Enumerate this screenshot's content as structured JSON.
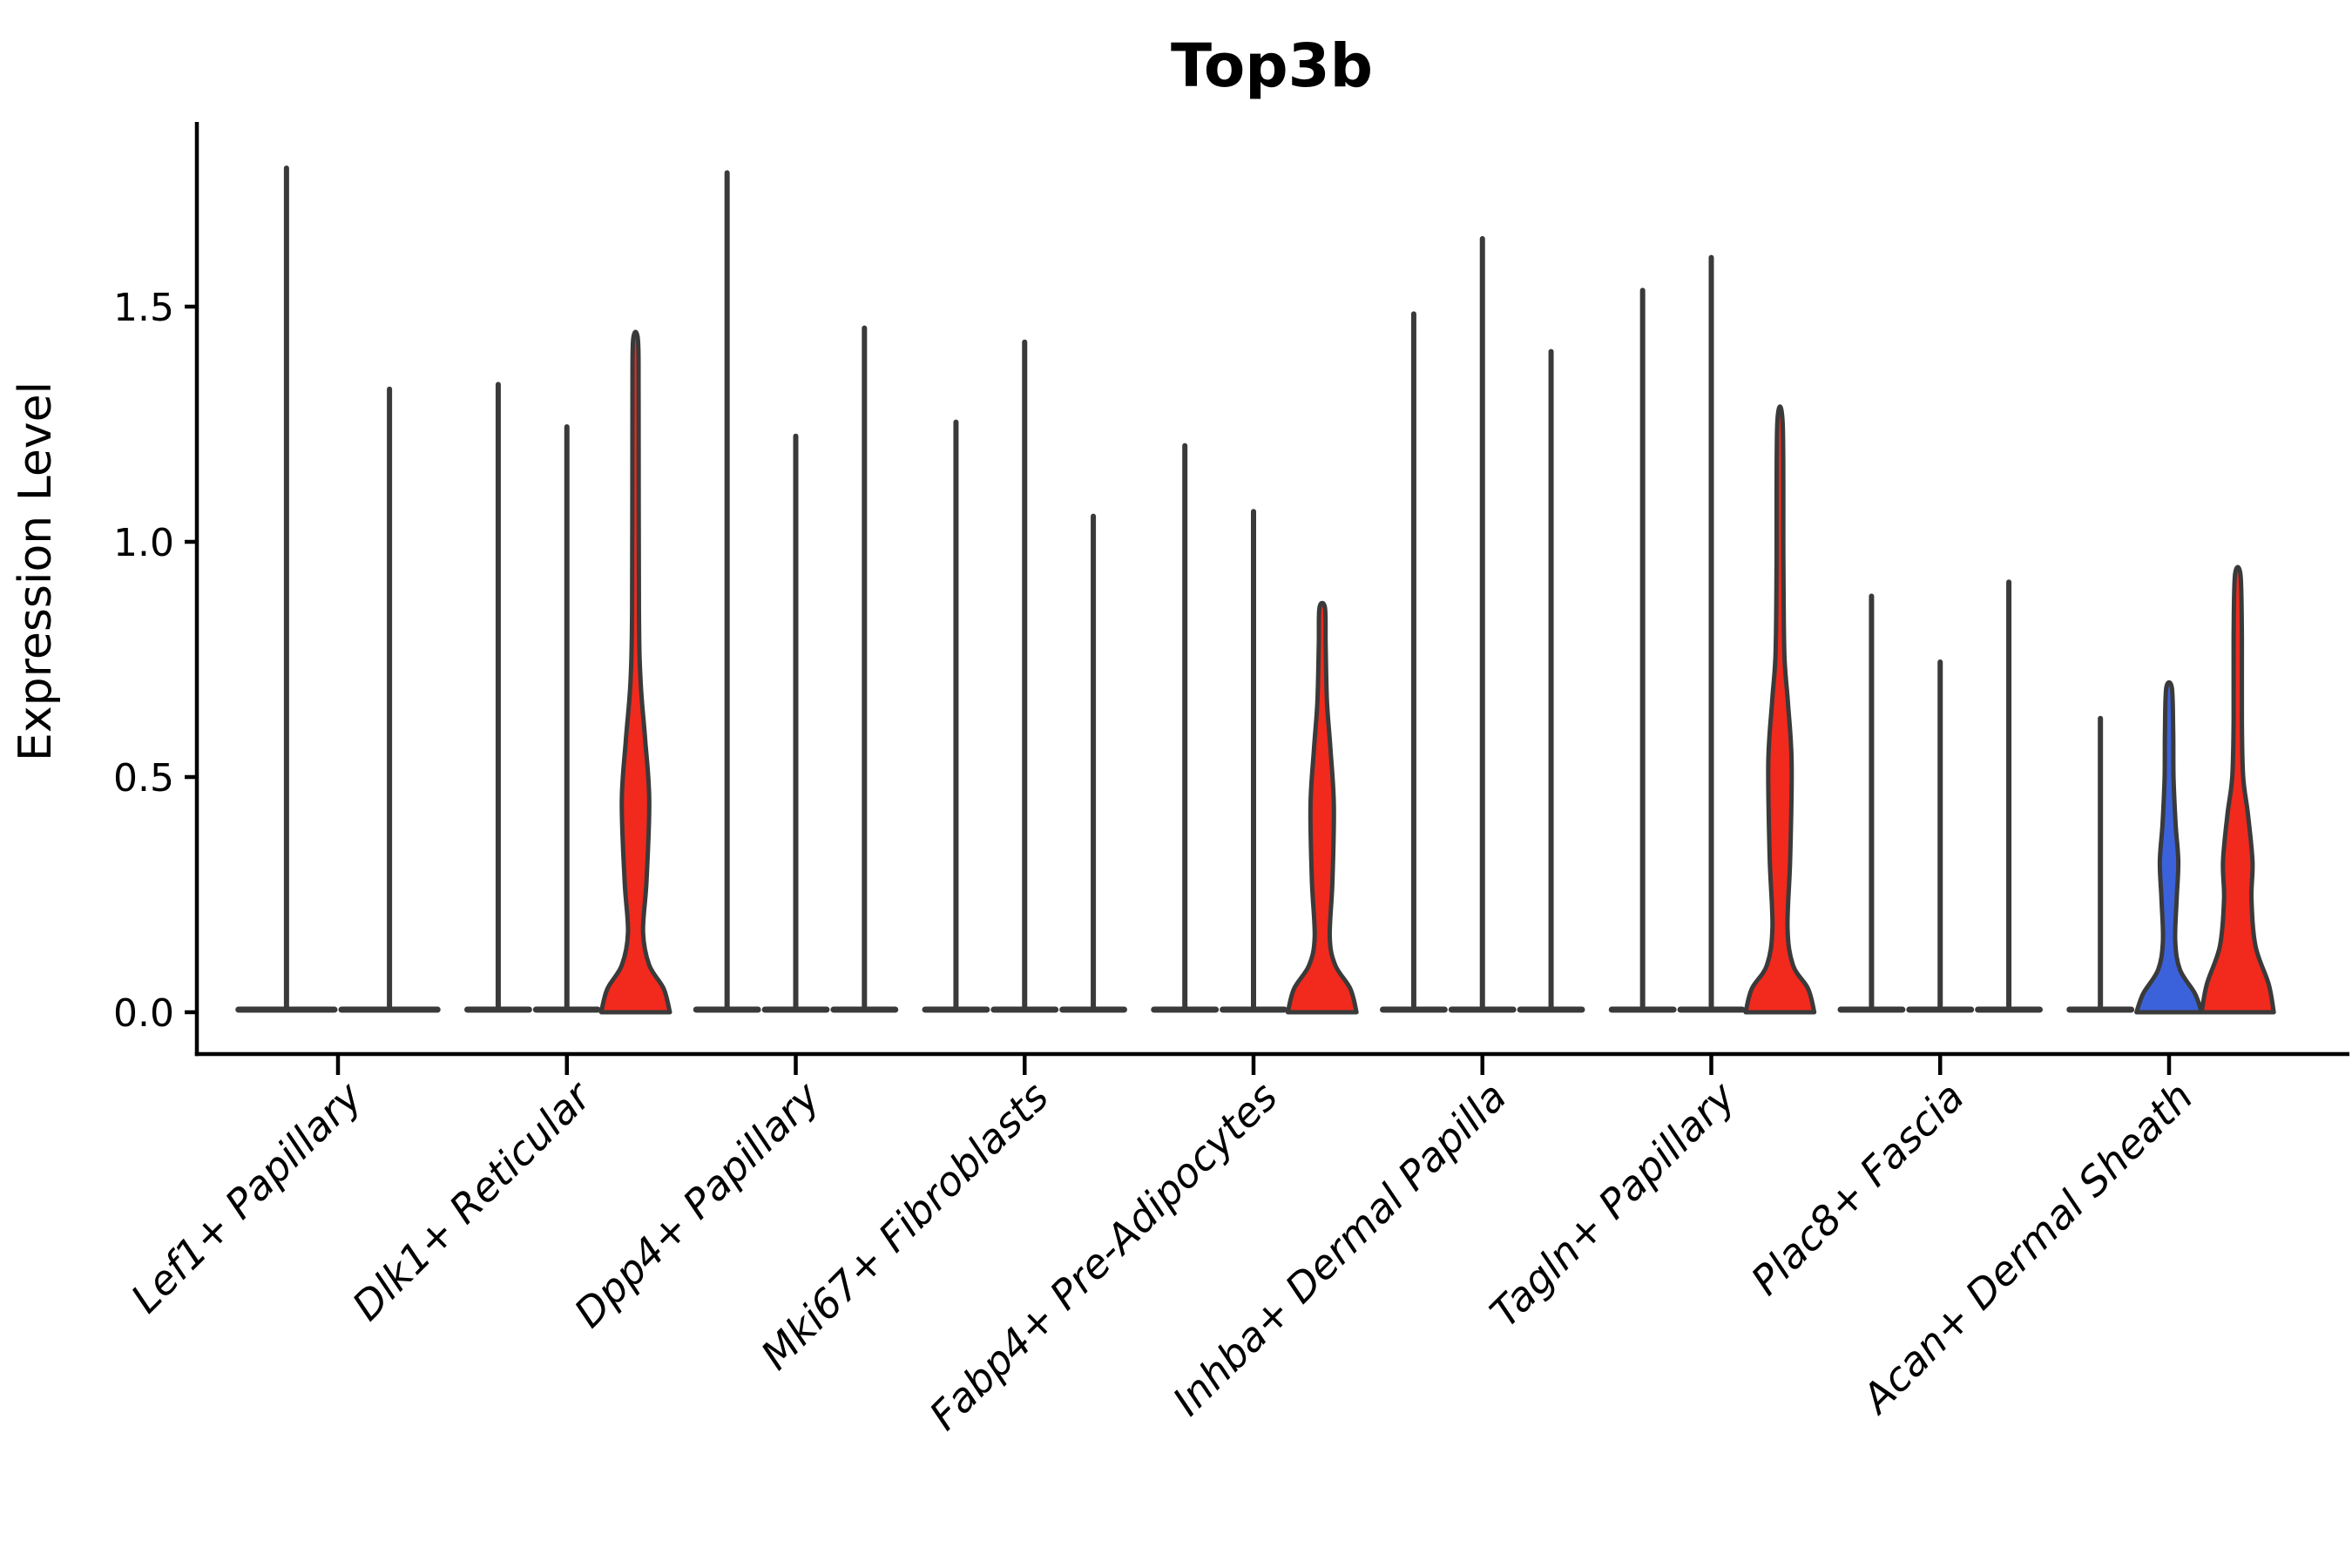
{
  "title": "Top3b",
  "chart_data": {
    "type": "violin",
    "title": "Top3b",
    "xlabel": "",
    "ylabel": "Expression Level",
    "ylim": [
      0,
      1.88
    ],
    "grid": false,
    "legend": "none",
    "x_label_rotation_deg": 45,
    "yticks": [
      0.0,
      0.5,
      1.0,
      1.5
    ],
    "ytick_labels": [
      "0.0",
      "0.5",
      "1.0",
      "1.5"
    ],
    "categories": [
      "Lef1+ Papillary",
      "Dlk1+ Reticular",
      "Dpp4+ Papillary",
      "Mki67+ Fibroblasts",
      "Fabp4+ Pre-Adipocytes",
      "Inhba+ Dermal Papilla",
      "Tagln+ Papillary",
      "Plac8+ Fascia",
      "Acan+ Dermal Sheath"
    ],
    "colors": {
      "red": "#F2291D",
      "blue": "#3B62DB",
      "outline": "#3A3A3A",
      "axis": "#000000"
    },
    "groups": [
      {
        "category": "Lef1+ Papillary",
        "violins": [
          {
            "max": 1.8,
            "fill": "none"
          },
          {
            "max": 1.33,
            "fill": "none"
          }
        ]
      },
      {
        "category": "Dlk1+ Reticular",
        "violins": [
          {
            "max": 1.34,
            "fill": "none"
          },
          {
            "max": 1.25,
            "fill": "none"
          },
          {
            "max": 1.43,
            "fill": "red",
            "profile": [
              [
                0,
                1.0
              ],
              [
                0.05,
                0.82
              ],
              [
                0.1,
                0.4
              ],
              [
                0.17,
                0.22
              ],
              [
                0.28,
                0.32
              ],
              [
                0.45,
                0.4
              ],
              [
                0.58,
                0.28
              ],
              [
                0.7,
                0.15
              ],
              [
                0.85,
                0.1
              ],
              [
                1.3,
                0.09
              ],
              [
                1.43,
                0.07
              ]
            ]
          }
        ]
      },
      {
        "category": "Dpp4+ Papillary",
        "violins": [
          {
            "max": 1.79,
            "fill": "none"
          },
          {
            "max": 1.23,
            "fill": "none"
          },
          {
            "max": 1.46,
            "fill": "none"
          }
        ]
      },
      {
        "category": "Mki67+ Fibroblasts",
        "violins": [
          {
            "max": 1.26,
            "fill": "none"
          },
          {
            "max": 1.43,
            "fill": "none"
          },
          {
            "max": 1.06,
            "fill": "none"
          }
        ]
      },
      {
        "category": "Fabp4+ Pre-Adipocytes",
        "violins": [
          {
            "max": 1.21,
            "fill": "none"
          },
          {
            "max": 1.07,
            "fill": "none"
          },
          {
            "max": 0.86,
            "fill": "red",
            "profile": [
              [
                0,
                1.0
              ],
              [
                0.05,
                0.82
              ],
              [
                0.1,
                0.38
              ],
              [
                0.16,
                0.22
              ],
              [
                0.28,
                0.3
              ],
              [
                0.44,
                0.34
              ],
              [
                0.56,
                0.24
              ],
              [
                0.66,
                0.14
              ],
              [
                0.78,
                0.1
              ],
              [
                0.86,
                0.08
              ]
            ]
          }
        ]
      },
      {
        "category": "Inhba+ Dermal Papilla",
        "violins": [
          {
            "max": 1.49,
            "fill": "none"
          },
          {
            "max": 1.65,
            "fill": "none"
          },
          {
            "max": 1.41,
            "fill": "none"
          }
        ]
      },
      {
        "category": "Tagln+ Papillary",
        "violins": [
          {
            "max": 1.54,
            "fill": "none"
          },
          {
            "max": 1.61,
            "fill": "none"
          },
          {
            "max": 1.25,
            "fill": "red",
            "profile": [
              [
                0,
                1.0
              ],
              [
                0.05,
                0.82
              ],
              [
                0.1,
                0.38
              ],
              [
                0.18,
                0.22
              ],
              [
                0.33,
                0.3
              ],
              [
                0.53,
                0.34
              ],
              [
                0.66,
                0.23
              ],
              [
                0.76,
                0.13
              ],
              [
                0.95,
                0.1
              ],
              [
                1.25,
                0.08
              ]
            ]
          }
        ]
      },
      {
        "category": "Plac8+ Fascia",
        "violins": [
          {
            "max": 0.89,
            "fill": "none"
          },
          {
            "max": 0.75,
            "fill": "none"
          },
          {
            "max": 0.92,
            "fill": "none"
          }
        ]
      },
      {
        "category": "Acan+ Dermal Sheath",
        "violins": [
          {
            "max": 0.63,
            "fill": "none"
          },
          {
            "max": 0.69,
            "fill": "blue",
            "profile": [
              [
                0,
                0.95
              ],
              [
                0.04,
                0.75
              ],
              [
                0.09,
                0.32
              ],
              [
                0.15,
                0.18
              ],
              [
                0.24,
                0.22
              ],
              [
                0.32,
                0.27
              ],
              [
                0.4,
                0.19
              ],
              [
                0.5,
                0.13
              ],
              [
                0.6,
                0.12
              ],
              [
                0.69,
                0.08
              ]
            ]
          },
          {
            "max": 0.93,
            "fill": "red",
            "profile": [
              [
                0,
                1.05
              ],
              [
                0.06,
                0.9
              ],
              [
                0.14,
                0.52
              ],
              [
                0.24,
                0.4
              ],
              [
                0.32,
                0.43
              ],
              [
                0.42,
                0.3
              ],
              [
                0.5,
                0.16
              ],
              [
                0.62,
                0.12
              ],
              [
                0.8,
                0.12
              ],
              [
                0.93,
                0.08
              ]
            ]
          }
        ]
      }
    ]
  }
}
